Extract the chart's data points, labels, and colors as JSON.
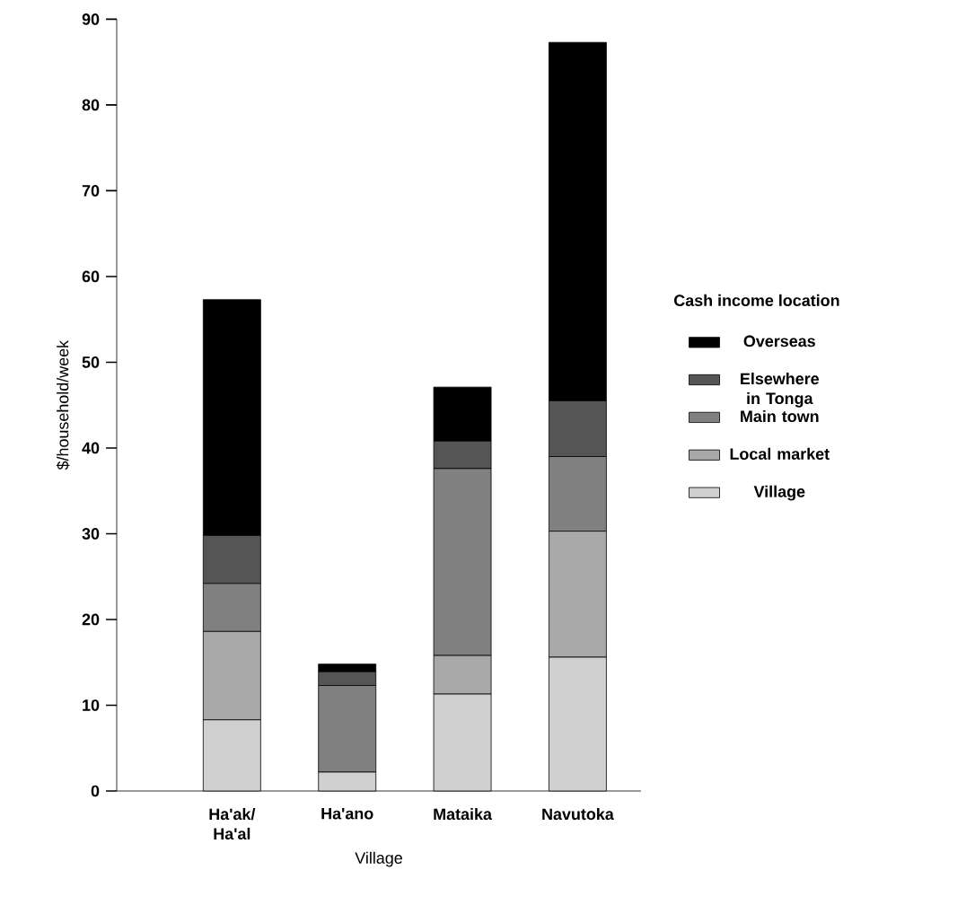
{
  "chart_data": {
    "type": "bar",
    "stacked": true,
    "xlabel": "Village",
    "ylabel": "$/household/week",
    "legend_title": "Cash income location",
    "legend": "right",
    "categories": [
      "Ha'ak/ Ha'al",
      "Ha'ano",
      "Mataika",
      "Navutoka"
    ],
    "ylim": [
      0,
      90
    ],
    "yticks": [
      0,
      10,
      20,
      30,
      40,
      50,
      60,
      70,
      80,
      90
    ],
    "series": [
      {
        "name": "Village",
        "color": "#d0d0d0",
        "values": [
          8.3,
          2.2,
          11.3,
          15.6
        ]
      },
      {
        "name": "Local market",
        "color": "#a8a8a8",
        "values": [
          10.3,
          0,
          4.5,
          14.7
        ]
      },
      {
        "name": "Main town",
        "color": "#808080",
        "values": [
          5.6,
          10.1,
          21.8,
          8.7
        ]
      },
      {
        "name": "Elsewhere in Tonga",
        "color": "#555555",
        "values": [
          5.6,
          1.6,
          3.2,
          6.5
        ]
      },
      {
        "name": "Overseas",
        "color": "#000000",
        "values": [
          27.5,
          0.9,
          6.3,
          41.8
        ]
      }
    ]
  }
}
